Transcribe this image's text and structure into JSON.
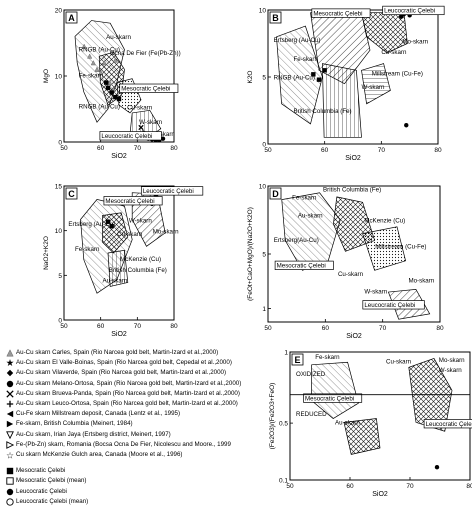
{
  "chart_data": [
    {
      "type": "scatter",
      "panel": "A",
      "xlabel": "SiO2",
      "ylabel": "MgO",
      "xlim": [
        50,
        80
      ],
      "ylim": [
        0,
        20
      ],
      "xticks": [
        50,
        60,
        70,
        80
      ],
      "yticks": [
        0,
        10,
        20
      ],
      "annotations": [
        {
          "text": "Au-skarn",
          "x": 61.5,
          "y": 15.6
        },
        {
          "text": "RNGB (Au-Cu)",
          "x": 54,
          "y": 13.7
        },
        {
          "text": "Ocna De Fier (Fe(Pb-Zn))",
          "x": 62.5,
          "y": 13.2
        },
        {
          "text": "Fe-skarn",
          "x": 54,
          "y": 9.8
        },
        {
          "text": "Mesocratic Çelebi",
          "x": 65.6,
          "y": 7.8
        },
        {
          "text": "RNGB (Au-Cu)",
          "x": 54,
          "y": 5.1
        },
        {
          "text": "Cu-skarn",
          "x": 67.2,
          "y": 4.9
        },
        {
          "text": "W-skarn",
          "x": 70.5,
          "y": 2.7
        },
        {
          "text": "Mo-skarn",
          "x": 73.2,
          "y": 0.9
        },
        {
          "text": "Leucocratic Çelebi",
          "x": 60.2,
          "y": 0.6
        }
      ],
      "series": [
        {
          "name": "Au-Cu skarn Carles",
          "points": [
            [
              55.5,
              14.5
            ],
            [
              57,
              13
            ],
            [
              58,
              12
            ],
            [
              59,
              11
            ],
            [
              60,
              10.5
            ],
            [
              61,
              12
            ],
            [
              62.5,
              9
            ],
            [
              63.5,
              8
            ],
            [
              64,
              12.4
            ]
          ]
        },
        {
          "name": "Mesocratic Çelebi",
          "points": [
            [
              62,
              8.2
            ],
            [
              63,
              7.5
            ],
            [
              64,
              6.8
            ],
            [
              65,
              6.5
            ],
            [
              61.5,
              9
            ]
          ]
        },
        {
          "name": "Leucocratic Çelebi",
          "points": [
            [
              73,
              0.5
            ],
            [
              74,
              0.4
            ],
            [
              75,
              0.3
            ],
            [
              76,
              0.3
            ],
            [
              77,
              0.5
            ],
            [
              72.5,
              1.2
            ]
          ]
        },
        {
          "name": "Fe-skarn British Columbia",
          "points": [
            [
              72,
              1.5
            ]
          ]
        },
        {
          "name": "Au-Cu skarn Melano-Ortosa",
          "points": [
            [
              71,
              2.2
            ]
          ]
        }
      ]
    },
    {
      "type": "scatter",
      "panel": "B",
      "xlabel": "SiO2",
      "ylabel": "K2O",
      "xlim": [
        50,
        80
      ],
      "ylim": [
        0,
        10
      ],
      "xticks": [
        50,
        60,
        70,
        80
      ],
      "yticks": [
        0,
        5,
        10
      ],
      "annotations": [
        {
          "text": "Mesocratic Çelebi",
          "x": 58,
          "y": 9.6
        },
        {
          "text": "Leucocratic Çelebi",
          "x": 70.5,
          "y": 9.8
        },
        {
          "text": "Ertsberg (Au-Cu)",
          "x": 51,
          "y": 7.6
        },
        {
          "text": "Mo-skarn",
          "x": 73.7,
          "y": 7.5
        },
        {
          "text": "Cu-skarn",
          "x": 70,
          "y": 6.7
        },
        {
          "text": "Fe-skarn",
          "x": 54.5,
          "y": 6.2
        },
        {
          "text": "Millstream (Cu-Fe)",
          "x": 68.3,
          "y": 5.1
        },
        {
          "text": "RNGB (Au-Cu)",
          "x": 51,
          "y": 4.8
        },
        {
          "text": "W-skarn",
          "x": 66.5,
          "y": 4.1
        },
        {
          "text": "British Columbia (Fe)",
          "x": 54.5,
          "y": 2.3
        }
      ],
      "series": [
        {
          "name": "Mesocratic Çelebi",
          "points": [
            [
              58,
              5.2
            ],
            [
              59,
              4.8
            ],
            [
              60,
              5.5
            ]
          ]
        },
        {
          "name": "Leucocratic Çelebi",
          "points": [
            [
              74,
              9.7
            ],
            [
              75,
              9.6
            ],
            [
              73.5,
              9.5
            ]
          ]
        },
        {
          "name": "Leucocratic Çelebi (mean)",
          "points": [
            [
              74.4,
              1.4
            ]
          ]
        }
      ]
    },
    {
      "type": "scatter",
      "panel": "C",
      "xlabel": "SiO2",
      "ylabel": "NaO2+K2O",
      "xlim": [
        50,
        80
      ],
      "ylim": [
        0,
        15
      ],
      "xticks": [
        50,
        60,
        70,
        80
      ],
      "yticks": [
        0,
        5,
        10,
        15
      ],
      "annotations": [
        {
          "text": "Leucocratic Çelebi",
          "x": 71.5,
          "y": 14.2
        },
        {
          "text": "Mesocratic Çelebi",
          "x": 61.3,
          "y": 13.1
        },
        {
          "text": "W-skarn",
          "x": 67.7,
          "y": 10.9
        },
        {
          "text": "Ertsberg (Au-Cu)",
          "x": 51.2,
          "y": 10.5
        },
        {
          "text": "Mo-skarn",
          "x": 74.2,
          "y": 9.7
        },
        {
          "text": "Cu-skarn",
          "x": 64.5,
          "y": 9.4
        },
        {
          "text": "Fe-skarn",
          "x": 53,
          "y": 7.7
        },
        {
          "text": "McKenzie (Cu)",
          "x": 65.3,
          "y": 6.6
        },
        {
          "text": "British Columbia (Fe)",
          "x": 62.2,
          "y": 5.4
        },
        {
          "text": "Au-skarn",
          "x": 60.5,
          "y": 4.2
        }
      ],
      "series": [
        {
          "name": "Leucocratic Çelebi",
          "points": [
            [
              73,
              13.5
            ],
            [
              74,
              13
            ],
            [
              75,
              14
            ]
          ]
        },
        {
          "name": "Mesocratic Çelebi",
          "points": [
            [
              62,
              11
            ],
            [
              63,
              10.5
            ]
          ]
        }
      ]
    },
    {
      "type": "scatter",
      "panel": "D",
      "xlabel": "SiO2",
      "ylabel": "(FeOt+CaO+MgO)/(Na2O+K2O)",
      "xlim": [
        50,
        80
      ],
      "ylim": [
        0,
        10
      ],
      "xticks": [
        50,
        60,
        70,
        80
      ],
      "yticks": [
        1,
        5,
        10
      ],
      "annotations": [
        {
          "text": "British Columbia (Fe)",
          "x": 59.6,
          "y": 9.6
        },
        {
          "text": "Fe-skarn",
          "x": 54.2,
          "y": 9.0
        },
        {
          "text": "Au-skarn",
          "x": 55.2,
          "y": 7.7
        },
        {
          "text": "McKenzie (Cu)",
          "x": 66.8,
          "y": 7.3
        },
        {
          "text": "Ertsberg(Au-Cu)",
          "x": 51,
          "y": 5.9
        },
        {
          "text": "Millstream (Cu-Fe)",
          "x": 68.7,
          "y": 5.4
        },
        {
          "text": "Mesocratic Çelebi",
          "x": 51.5,
          "y": 4.0
        },
        {
          "text": "Cu-skarn",
          "x": 62.2,
          "y": 3.4
        },
        {
          "text": "Mo-skarn",
          "x": 74.5,
          "y": 2.9
        },
        {
          "text": "W-skarn",
          "x": 66.8,
          "y": 2.1
        },
        {
          "text": "Leucocratic Çelebi",
          "x": 66.8,
          "y": 1.1
        }
      ],
      "series": [
        {
          "name": "Leucocratic Çelebi",
          "points": [
            [
              72,
              1.3
            ],
            [
              73,
              1.2
            ],
            [
              75,
              1.4
            ]
          ]
        }
      ]
    },
    {
      "type": "scatter",
      "panel": "E",
      "xlabel": "SiO2",
      "ylabel": "(Fe2O3)/(Fe2O3+FeO)",
      "xlim": [
        50,
        80
      ],
      "ylim": [
        0.1,
        1.0
      ],
      "xticks": [
        50,
        60,
        70,
        80
      ],
      "yticks": [
        0.1,
        0.5,
        1.0
      ],
      "annotations": [
        {
          "text": "Fe-skarn",
          "x": 54.2,
          "y": 0.95
        },
        {
          "text": "Cu-skarn",
          "x": 66,
          "y": 0.92
        },
        {
          "text": "Mo-skarn",
          "x": 74.8,
          "y": 0.93
        },
        {
          "text": "W-skarn",
          "x": 74.8,
          "y": 0.86
        },
        {
          "text": "OXIDIZED",
          "x": 51,
          "y": 0.83
        },
        {
          "text": "Mesocratic Çelebi",
          "x": 52.5,
          "y": 0.66
        },
        {
          "text": "REDUCED",
          "x": 51,
          "y": 0.55
        },
        {
          "text": "Au-skarn",
          "x": 57.5,
          "y": 0.49
        },
        {
          "text": "Leucocratic Çelebi",
          "x": 72.6,
          "y": 0.48
        }
      ],
      "series": [
        {
          "name": "Leucocratic Çelebi (mean)",
          "points": [
            [
              74.5,
              0.19
            ]
          ]
        }
      ]
    }
  ],
  "legend": [
    {
      "icon": "triangle-up-gray",
      "label": "Au-Cu skarn Carles, Spain (Rio Narcea gold belt, Martin-Izard et al.,2000)"
    },
    {
      "icon": "star-black",
      "label": "Au-Cu skarn El Valle-Boinas, Spain (Rio Narcea gold belt, Cepedal et al.,2000)"
    },
    {
      "icon": "diamond-black",
      "label": "Au-Cu skarn Vilaverde, Spain (Rio Narcea gold belt, Martin-Izard et al.,2000)"
    },
    {
      "icon": "circle-black",
      "label": "Au-Cu skarn Melano-Ortosa, Spain (Rio Narcea gold belt, Martin-Izard et al.,2000)"
    },
    {
      "icon": "cross-x",
      "label": "Au-Cu skarn Brueva-Panda, Spain (Rio Narcea gold belt, Martin-Izard et al.,2000)"
    },
    {
      "icon": "plus-black",
      "label": "Au-Cu skarn Leuco-Ortosa, Spain (Rio Narcea gold belt, Martin-Izard et al.,2000)"
    },
    {
      "icon": "triangle-left-black",
      "label": "Cu-Fe skarn Millstream deposit, Canada (Lentz et al., 1995)"
    },
    {
      "icon": "triangle-right-black",
      "label": "Fe-skarn, British Columbia (Meinert, 1984)"
    },
    {
      "icon": "triangle-down-open",
      "label": "Au-Cu skarn, Irian Jaya (Ertsberg district, Meinert, 1997)"
    },
    {
      "icon": "triangle-right-open",
      "label": "Fe-(Pb-Zn) skarn, Romania (Bocsa Ocna De Fier, Nicolescu and Moore., 1999"
    },
    {
      "icon": "star-open",
      "label": "Cu skarn McKenzie Gulch area, Canada (Moore et al., 1996)"
    },
    {
      "icon": "square-black",
      "label": "Mesocratic Çelebi"
    },
    {
      "icon": "square-open",
      "label": "Mesocratic Çelebi (mean)"
    },
    {
      "icon": "circle-black",
      "label": "Leucocratic Çelebi"
    },
    {
      "icon": "circle-open",
      "label": "Leucocratic Çelebi (mean)"
    }
  ],
  "colors": {
    "ink": "#000000",
    "hatch_gray": "#9a9a9a",
    "background": "#ffffff"
  }
}
